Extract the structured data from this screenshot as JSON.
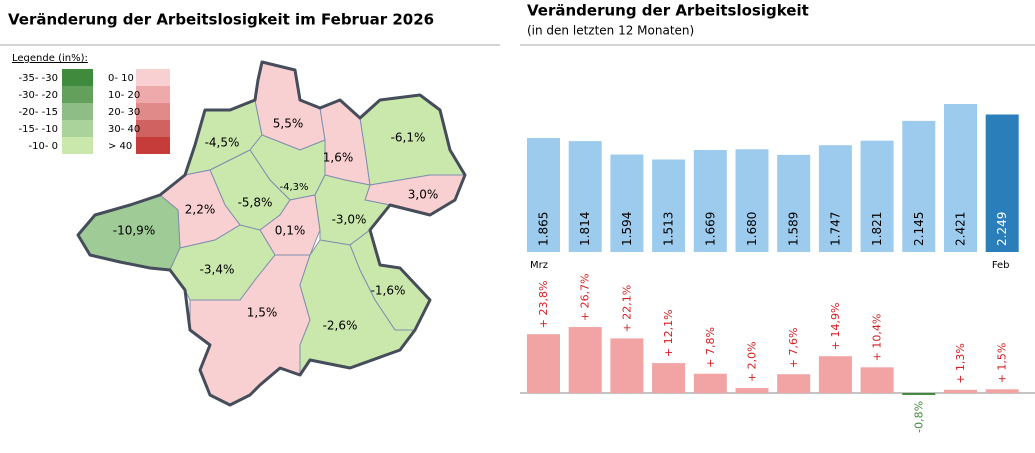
{
  "chart_data": [
    {
      "type": "map",
      "title": "Veränderung der Arbeitslosigkeit im Februar 2026",
      "legend_title": "Legende (in%):",
      "legend": [
        {
          "label": "-35- -30",
          "color": "#3f8a3c"
        },
        {
          "label": "-30- -20",
          "color": "#62a05c"
        },
        {
          "label": "-20- -15",
          "color": "#8fbd86"
        },
        {
          "label": "-15- -10",
          "color": "#a9d39a"
        },
        {
          "label": "-10- 0",
          "color": "#cbe8ac"
        },
        {
          "label": "0- 10",
          "color": "#f9d0d1"
        },
        {
          "label": "10- 20",
          "color": "#eeaaaa"
        },
        {
          "label": "20- 30",
          "color": "#e08b8a"
        },
        {
          "label": "30- 40",
          "color": "#d06262"
        },
        {
          "label": "> 40",
          "color": "#c63c3a"
        }
      ],
      "values": [
        -4.5,
        5.5,
        1.6,
        -6.1,
        3.0,
        -4.3,
        -5.8,
        2.2,
        -10.9,
        0.1,
        -3.0,
        -3.4,
        -1.6,
        1.5,
        -2.6
      ],
      "value_labels": [
        "-4,5%",
        "5,5%",
        "1,6%",
        "-6,1%",
        "3,0%",
        "-4,3%",
        "-5,8%",
        "2,2%",
        "-10,9%",
        "0,1%",
        "-3,0%",
        "-3,4%",
        "-1,6%",
        "1,5%",
        "-2,6%"
      ],
      "colors": [
        "#cbe8ac",
        "#f9d0d1",
        "#f9d0d1",
        "#cbe8ac",
        "#f9d0d1",
        "#cbe8ac",
        "#cbe8ac",
        "#f9d0d1",
        "#9fcb96",
        "#f9d0d1",
        "#cbe8ac",
        "#cbe8ac",
        "#cbe8ac",
        "#f9d0d1",
        "#cbe8ac"
      ]
    },
    {
      "type": "bar",
      "title": "Veränderung der Arbeitslosigkeit",
      "subtitle": "(in den letzten 12 Monaten)",
      "categories": [
        "Mrz",
        null,
        null,
        null,
        null,
        null,
        null,
        null,
        null,
        null,
        null,
        "Feb"
      ],
      "values": [
        1865,
        1814,
        1594,
        1513,
        1669,
        1680,
        1589,
        1747,
        1821,
        2145,
        2421,
        2249
      ],
      "value_labels": [
        "1.865",
        "1.814",
        "1.594",
        "1.513",
        "1.669",
        "1.680",
        "1.589",
        "1.747",
        "1.821",
        "2.145",
        "2.421",
        "2.249"
      ],
      "colors": [
        "#9ccbee",
        "#9ccbee",
        "#9ccbee",
        "#9ccbee",
        "#9ccbee",
        "#9ccbee",
        "#9ccbee",
        "#9ccbee",
        "#9ccbee",
        "#9ccbee",
        "#9ccbee",
        "#2a7fbb"
      ]
    },
    {
      "type": "change",
      "values": [
        23.8,
        26.7,
        22.1,
        12.1,
        7.8,
        2.0,
        7.6,
        14.9,
        10.4,
        -0.8,
        1.3,
        1.5
      ],
      "value_labels": [
        "+ 23,8%",
        "+ 26,7%",
        "+ 22,1%",
        "+ 12,1%",
        "+ 7,8%",
        "+ 2,0%",
        "+ 7,6%",
        "+ 14,9%",
        "+ 10,4%",
        "-0,8%",
        "+ 1,3%",
        "+ 1,5%"
      ],
      "color": "#f2a3a4",
      "negative_color": "#3f8a3c"
    }
  ]
}
